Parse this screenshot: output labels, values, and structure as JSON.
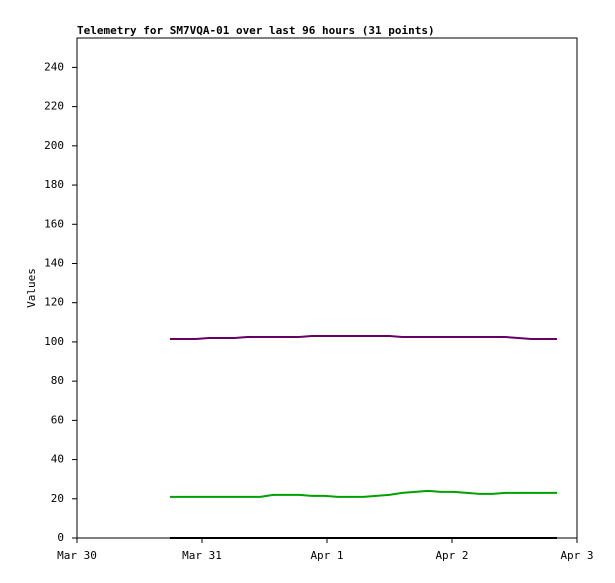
{
  "chart_data": {
    "type": "line",
    "title": "Telemetry for SM7VQA-01 over last 96 hours (31 points)",
    "y_label": "Values",
    "x": [
      0.744,
      0.847,
      0.95,
      1.054,
      1.157,
      1.26,
      1.363,
      1.466,
      1.57,
      1.673,
      1.776,
      1.879,
      1.982,
      2.086,
      2.189,
      2.292,
      2.395,
      2.498,
      2.602,
      2.705,
      2.808,
      2.911,
      3.014,
      3.118,
      3.221,
      3.324,
      3.427,
      3.53,
      3.634,
      3.737,
      3.84
    ],
    "series": [
      {
        "color": "#660066",
        "values": [
          101.5,
          101.5,
          101.5,
          102,
          102,
          102,
          102.5,
          102.5,
          102.5,
          102.5,
          102.5,
          103,
          103,
          103,
          103,
          103,
          103,
          103,
          102.5,
          102.5,
          102.5,
          102.5,
          102.5,
          102.5,
          102.5,
          102.5,
          102.5,
          102,
          101.5,
          101.5,
          101.5
        ]
      },
      {
        "color": "#00a000",
        "values": [
          21,
          21,
          21,
          21,
          21,
          21,
          21,
          21,
          22,
          22,
          22,
          21.5,
          21.5,
          21,
          21,
          21,
          21.5,
          22,
          23,
          23.5,
          24,
          23.5,
          23.5,
          23,
          22.5,
          22.5,
          23,
          23,
          23,
          23,
          23
        ]
      },
      {
        "color": "#000000",
        "values": [
          0,
          0,
          0,
          0,
          0,
          0,
          0,
          0,
          0,
          0,
          0,
          0,
          0,
          0,
          0,
          0,
          0,
          0,
          0,
          0,
          0,
          0,
          0,
          0,
          0,
          0,
          0,
          0,
          0,
          0,
          0
        ]
      }
    ],
    "xlim": [
      0,
      4
    ],
    "xticks": [
      {
        "value": 0,
        "label": "Mar 30"
      },
      {
        "value": 1,
        "label": "Mar 31"
      },
      {
        "value": 2,
        "label": "Apr 1"
      },
      {
        "value": 3,
        "label": "Apr 2"
      },
      {
        "value": 4,
        "label": "Apr 3"
      }
    ],
    "ylim": [
      0,
      255
    ],
    "yticks": [
      0,
      20,
      40,
      60,
      80,
      100,
      120,
      140,
      160,
      180,
      200,
      220,
      240
    ],
    "grid": false
  }
}
